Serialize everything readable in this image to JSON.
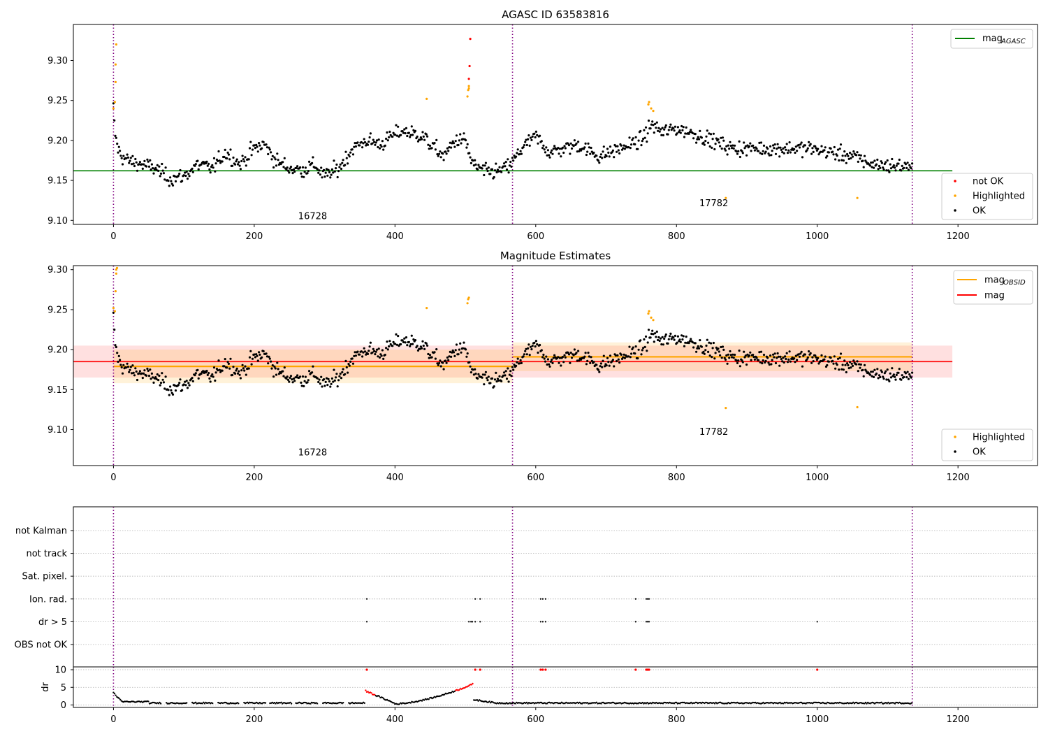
{
  "chart_data": [
    {
      "type": "scatter",
      "title": "AGASC ID 63583816",
      "xlim": [
        -57,
        1313
      ],
      "ylim": [
        9.095,
        9.345
      ],
      "xticks": [
        0,
        200,
        400,
        600,
        800,
        1000,
        1200
      ],
      "yticks": [
        9.1,
        9.15,
        9.2,
        9.25,
        9.3
      ],
      "ytick_labels": [
        "9.10",
        "9.15",
        "9.20",
        "9.25",
        "9.30"
      ],
      "vlines": [
        0,
        567,
        1135
      ],
      "obsid_labels": [
        {
          "text": "16728",
          "x": 283,
          "y": 9.106
        },
        {
          "text": "17782",
          "x": 853,
          "y": 9.122
        }
      ],
      "mag_agasc": 9.162,
      "legend_lines": [
        {
          "label": "mag",
          "sub": "AGASC",
          "color": "#008000"
        }
      ],
      "legend_points": [
        {
          "label": "not OK",
          "color": "#ff0000"
        },
        {
          "label": "Highlighted",
          "color": "#ffa500"
        },
        {
          "label": "OK",
          "color": "#000000"
        }
      ],
      "highlighted": [
        [
          0,
          9.24
        ],
        [
          2,
          9.248
        ],
        [
          3,
          9.273
        ],
        [
          3,
          9.295
        ],
        [
          4,
          9.32
        ],
        [
          445,
          9.252
        ],
        [
          503,
          9.255
        ],
        [
          504,
          9.263
        ],
        [
          505,
          9.265
        ],
        [
          505,
          9.268
        ],
        [
          760,
          9.245
        ],
        [
          761,
          9.248
        ],
        [
          764,
          9.24
        ],
        [
          767,
          9.237
        ],
        [
          870,
          9.128
        ],
        [
          1057,
          9.128
        ]
      ],
      "not_ok": [
        [
          505,
          9.277
        ],
        [
          506,
          9.293
        ],
        [
          507,
          9.327
        ]
      ],
      "ok_trend": [
        [
          0,
          9.24
        ],
        [
          2,
          9.21
        ],
        [
          6,
          9.19
        ],
        [
          12,
          9.18
        ],
        [
          20,
          9.175
        ],
        [
          40,
          9.17
        ],
        [
          60,
          9.165
        ],
        [
          80,
          9.152
        ],
        [
          100,
          9.155
        ],
        [
          120,
          9.17
        ],
        [
          140,
          9.165
        ],
        [
          160,
          9.185
        ],
        [
          180,
          9.17
        ],
        [
          200,
          9.19
        ],
        [
          215,
          9.195
        ],
        [
          230,
          9.175
        ],
        [
          250,
          9.165
        ],
        [
          270,
          9.163
        ],
        [
          285,
          9.17
        ],
        [
          300,
          9.155
        ],
        [
          320,
          9.165
        ],
        [
          340,
          9.19
        ],
        [
          360,
          9.2
        ],
        [
          380,
          9.195
        ],
        [
          395,
          9.205
        ],
        [
          410,
          9.212
        ],
        [
          440,
          9.205
        ],
        [
          450,
          9.195
        ],
        [
          470,
          9.18
        ],
        [
          485,
          9.2
        ],
        [
          500,
          9.2
        ],
        [
          510,
          9.17
        ],
        [
          530,
          9.16
        ],
        [
          550,
          9.162
        ],
        [
          565,
          9.17
        ],
        [
          580,
          9.19
        ],
        [
          600,
          9.205
        ],
        [
          620,
          9.185
        ],
        [
          640,
          9.19
        ],
        [
          660,
          9.195
        ],
        [
          690,
          9.18
        ],
        [
          720,
          9.19
        ],
        [
          750,
          9.2
        ],
        [
          765,
          9.22
        ],
        [
          780,
          9.21
        ],
        [
          800,
          9.215
        ],
        [
          820,
          9.21
        ],
        [
          850,
          9.2
        ],
        [
          880,
          9.19
        ],
        [
          920,
          9.19
        ],
        [
          960,
          9.19
        ],
        [
          990,
          9.19
        ],
        [
          1020,
          9.185
        ],
        [
          1050,
          9.18
        ],
        [
          1080,
          9.17
        ],
        [
          1110,
          9.168
        ],
        [
          1135,
          9.168
        ]
      ]
    },
    {
      "type": "scatter",
      "title": "Magnitude Estimates",
      "xlim": [
        -57,
        1313
      ],
      "ylim": [
        9.055,
        9.305
      ],
      "xticks": [
        0,
        200,
        400,
        600,
        800,
        1000,
        1200
      ],
      "yticks": [
        9.1,
        9.15,
        9.2,
        9.25,
        9.3
      ],
      "ytick_labels": [
        "9.10",
        "9.15",
        "9.20",
        "9.25",
        "9.30"
      ],
      "vlines": [
        0,
        567,
        1135
      ],
      "obsid_labels": [
        {
          "text": "16728",
          "x": 283,
          "y": 9.072
        },
        {
          "text": "17782",
          "x": 853,
          "y": 9.098
        }
      ],
      "mag": 9.185,
      "mag_band": [
        9.165,
        9.205
      ],
      "mag_obsid": [
        {
          "x0": 0,
          "x1": 567,
          "y": 9.179,
          "band": [
            9.158,
            9.2
          ]
        },
        {
          "x0": 567,
          "x1": 1135,
          "y": 9.191,
          "band": [
            9.173,
            9.209
          ]
        }
      ],
      "legend_lines": [
        {
          "label": "mag",
          "sub": "OBSID",
          "color": "#ffa500"
        },
        {
          "label": "mag",
          "sub": "",
          "color": "#ff0000"
        }
      ],
      "legend_points": [
        {
          "label": "Highlighted",
          "color": "#ffa500"
        },
        {
          "label": "OK",
          "color": "#000000"
        }
      ],
      "highlighted": [
        [
          0,
          9.252
        ],
        [
          2,
          9.248
        ],
        [
          3,
          9.273
        ],
        [
          4,
          9.295
        ],
        [
          4,
          9.3
        ],
        [
          5,
          9.302
        ],
        [
          445,
          9.252
        ],
        [
          503,
          9.258
        ],
        [
          504,
          9.263
        ],
        [
          505,
          9.265
        ],
        [
          760,
          9.245
        ],
        [
          761,
          9.248
        ],
        [
          764,
          9.24
        ],
        [
          767,
          9.237
        ],
        [
          870,
          9.127
        ],
        [
          1057,
          9.128
        ]
      ]
    },
    {
      "type": "event_flags",
      "xlim": [
        -57,
        1313
      ],
      "categories": [
        "not Kalman",
        "not track",
        "Sat. pixel.",
        "Ion. rad.",
        "dr > 5",
        "OBS not OK"
      ],
      "events": {
        "Ion. rad.": [
          360,
          514,
          521,
          607,
          610,
          614,
          742,
          757,
          759,
          761
        ],
        "dr > 5": [
          360,
          505,
          508,
          510,
          514,
          521,
          607,
          610,
          614,
          742,
          757,
          759,
          761,
          1000
        ]
      }
    },
    {
      "type": "scatter",
      "ylabel": "dr",
      "xlim": [
        -57,
        1313
      ],
      "ylim": [
        -0.7,
        10.8
      ],
      "xticks": [
        0,
        200,
        400,
        600,
        800,
        1000,
        1200
      ],
      "yticks": [
        0,
        5,
        10
      ],
      "ytick_labels": [
        "0",
        "5",
        "10"
      ],
      "vlines": [
        0,
        567,
        1135
      ],
      "red_flags_at_10": [
        360,
        514,
        521,
        607,
        610,
        614,
        742,
        757,
        759,
        761,
        1000
      ]
    }
  ]
}
